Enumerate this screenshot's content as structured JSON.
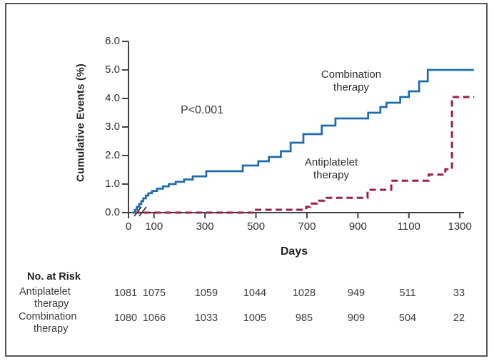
{
  "figure": {
    "p_value": "P<0.001",
    "series_labels": {
      "combination": [
        "Combination",
        "therapy"
      ],
      "antiplatelet": [
        "Antiplatelet",
        "therapy"
      ]
    }
  },
  "chart_data": {
    "type": "line",
    "subtype": "kaplan-meier-step",
    "title": "",
    "xlabel": "Days",
    "ylabel": "Cumulative Events (%)",
    "xlim": [
      0,
      1360
    ],
    "ylim": [
      0,
      6
    ],
    "x_ticks": [
      0,
      100,
      300,
      500,
      700,
      900,
      1100,
      1300
    ],
    "y_tick_labels": [
      "0.0",
      "1.0",
      "2.0",
      "3.0",
      "4.0",
      "5.0",
      "6.0"
    ],
    "axis_break_after_zero": true,
    "annotation": "P<0.001",
    "grid": false,
    "legend_position": "inline-labels",
    "series": [
      {
        "name": "Combination therapy",
        "style": "solid",
        "color": "#1c6cad",
        "end_day": 1355,
        "points": [
          [
            15,
            0
          ],
          [
            25,
            0.1
          ],
          [
            33,
            0.2
          ],
          [
            42,
            0.3
          ],
          [
            50,
            0.4
          ],
          [
            58,
            0.5
          ],
          [
            68,
            0.6
          ],
          [
            78,
            0.68
          ],
          [
            92,
            0.76
          ],
          [
            112,
            0.84
          ],
          [
            135,
            0.92
          ],
          [
            158,
            1.0
          ],
          [
            185,
            1.08
          ],
          [
            218,
            1.16
          ],
          [
            252,
            1.27
          ],
          [
            305,
            1.45
          ],
          [
            448,
            1.65
          ],
          [
            509,
            1.8
          ],
          [
            551,
            1.95
          ],
          [
            598,
            2.15
          ],
          [
            636,
            2.45
          ],
          [
            686,
            2.75
          ],
          [
            758,
            3.05
          ],
          [
            812,
            3.3
          ],
          [
            940,
            3.5
          ],
          [
            988,
            3.7
          ],
          [
            1012,
            3.85
          ],
          [
            1066,
            4.05
          ],
          [
            1100,
            4.25
          ],
          [
            1140,
            4.6
          ],
          [
            1174,
            5.0
          ]
        ]
      },
      {
        "name": "Antiplatelet therapy",
        "style": "dashed",
        "color": "#9b1f4e",
        "end_day": 1356,
        "points": [
          [
            20,
            0
          ],
          [
            488,
            0.1
          ],
          [
            697,
            0.2
          ],
          [
            712,
            0.32
          ],
          [
            740,
            0.42
          ],
          [
            768,
            0.52
          ],
          [
            938,
            0.8
          ],
          [
            1031,
            1.12
          ],
          [
            1178,
            1.33
          ],
          [
            1243,
            1.52
          ],
          [
            1269,
            4.05
          ]
        ]
      }
    ]
  },
  "at_risk": {
    "title": "No. at Risk",
    "rows": [
      {
        "label_lines": [
          "Antiplatelet",
          "therapy"
        ],
        "values": [
          1081,
          1075,
          1059,
          1044,
          1028,
          949,
          511,
          33
        ]
      },
      {
        "label_lines": [
          "Combination",
          "therapy"
        ],
        "values": [
          1080,
          1066,
          1033,
          1005,
          985,
          909,
          504,
          22
        ]
      }
    ]
  },
  "colors": {
    "combination_line": "#1c6cad",
    "antiplatelet_line": "#9b1f4e",
    "axis": "#414042",
    "frame_border": "#54565b",
    "text": "#2d2c2b"
  }
}
